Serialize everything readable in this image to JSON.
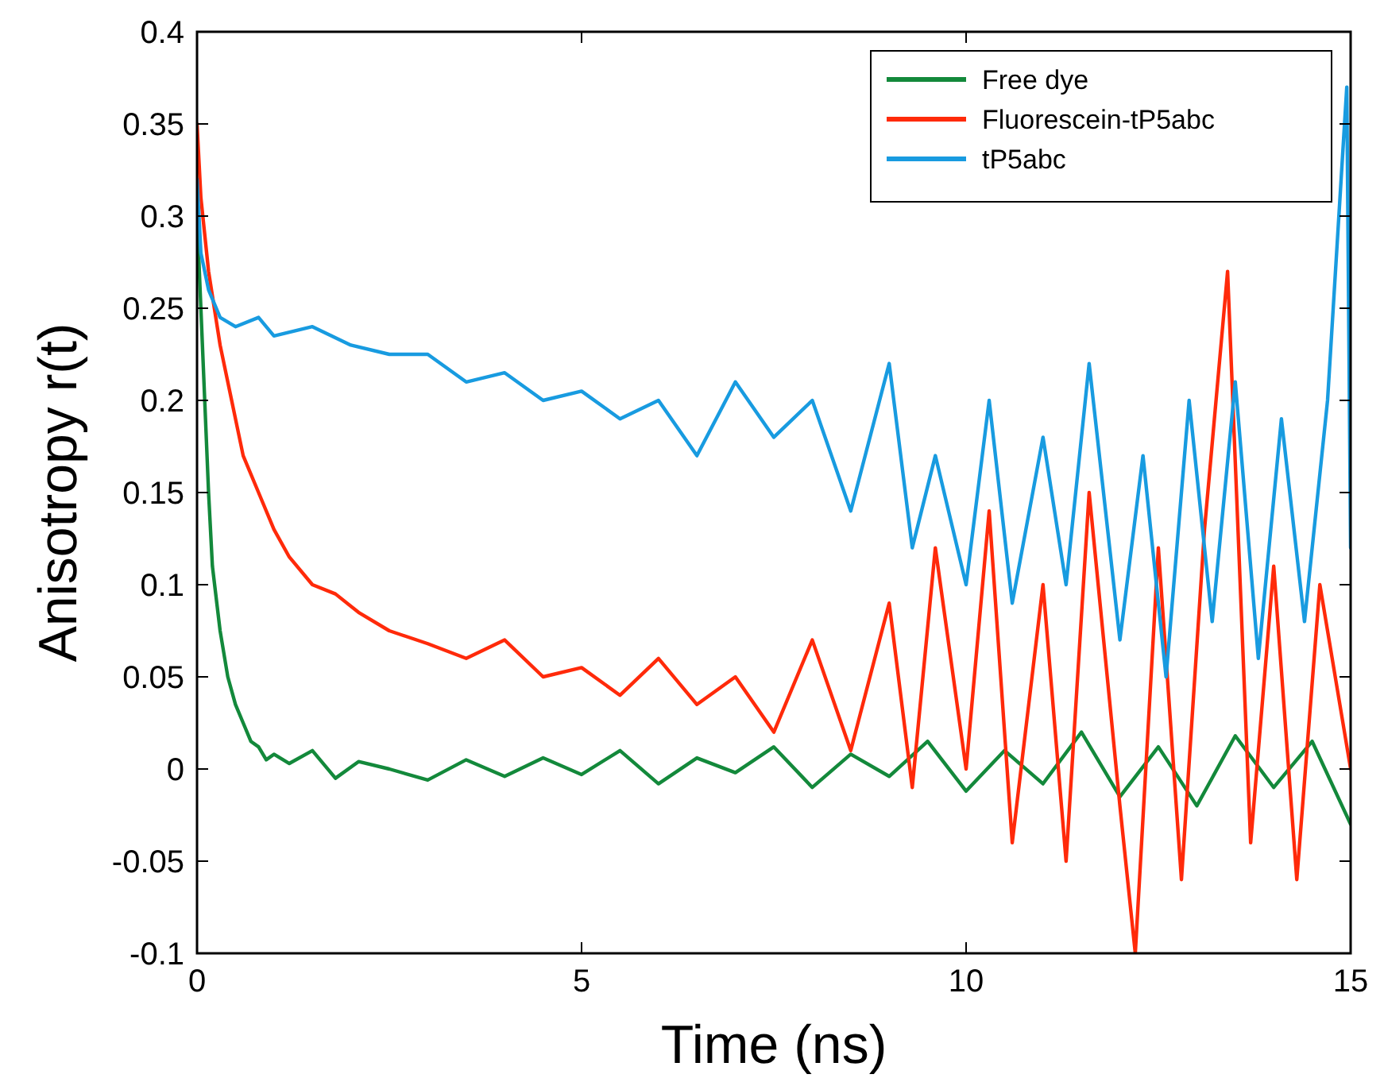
{
  "chart_data": {
    "type": "line",
    "xlabel": "Time (ns)",
    "ylabel": "Anisotropy r(t)",
    "xlim": [
      0,
      15
    ],
    "ylim": [
      -0.1,
      0.4
    ],
    "xticks": [
      0,
      5,
      10,
      15
    ],
    "yticks": [
      -0.1,
      -0.05,
      0,
      0.05,
      0.1,
      0.15,
      0.2,
      0.25,
      0.3,
      0.35,
      0.4
    ],
    "grid": false,
    "legend": "top right",
    "marker": "none",
    "line_style": "solid",
    "series": [
      {
        "name": "Free dye",
        "color": "#13893b",
        "x": [
          0,
          0.05,
          0.1,
          0.15,
          0.2,
          0.3,
          0.4,
          0.5,
          0.6,
          0.7,
          0.8,
          0.9,
          1.0,
          1.2,
          1.5,
          1.8,
          2.1,
          2.5,
          3,
          3.5,
          4,
          4.5,
          5,
          5.5,
          6,
          6.5,
          7,
          7.5,
          8,
          8.5,
          9,
          9.5,
          10,
          10.5,
          11,
          11.5,
          12,
          12.5,
          13,
          13.5,
          14,
          14.5,
          15
        ],
        "values": [
          0.3,
          0.25,
          0.2,
          0.15,
          0.11,
          0.075,
          0.05,
          0.035,
          0.025,
          0.015,
          0.012,
          0.005,
          0.008,
          0.003,
          0.01,
          -0.005,
          0.004,
          0,
          -0.006,
          0.005,
          -0.004,
          0.006,
          -0.003,
          0.01,
          -0.008,
          0.006,
          -0.002,
          0.012,
          -0.01,
          0.008,
          -0.004,
          0.015,
          -0.012,
          0.01,
          -0.008,
          0.02,
          -0.015,
          0.012,
          -0.02,
          0.018,
          -0.01,
          0.015,
          -0.03
        ]
      },
      {
        "name": "Fluorescein-tP5abc",
        "color": "#ff2a0a",
        "x": [
          0,
          0.05,
          0.15,
          0.3,
          0.45,
          0.6,
          0.8,
          1.0,
          1.2,
          1.5,
          1.8,
          2.1,
          2.5,
          3,
          3.5,
          4,
          4.5,
          5,
          5.5,
          6,
          6.5,
          7,
          7.5,
          8,
          8.5,
          9,
          9.3,
          9.6,
          10,
          10.3,
          10.6,
          11,
          11.3,
          11.6,
          12,
          12.2,
          12.5,
          12.8,
          13.1,
          13.4,
          13.7,
          14,
          14.3,
          14.6,
          15
        ],
        "values": [
          0.35,
          0.31,
          0.27,
          0.23,
          0.2,
          0.17,
          0.15,
          0.13,
          0.115,
          0.1,
          0.095,
          0.085,
          0.075,
          0.068,
          0.06,
          0.07,
          0.05,
          0.055,
          0.04,
          0.06,
          0.035,
          0.05,
          0.02,
          0.07,
          0.01,
          0.09,
          -0.01,
          0.12,
          0.0,
          0.14,
          -0.04,
          0.1,
          -0.05,
          0.15,
          -0.02,
          -0.1,
          0.12,
          -0.06,
          0.13,
          0.27,
          -0.04,
          0.11,
          -0.06,
          0.1,
          0.0
        ]
      },
      {
        "name": "tP5abc",
        "color": "#189be0",
        "x": [
          0,
          0.05,
          0.15,
          0.3,
          0.5,
          0.8,
          1.0,
          1.5,
          2,
          2.5,
          3,
          3.5,
          4,
          4.5,
          5,
          5.5,
          6,
          6.5,
          7,
          7.5,
          8,
          8.5,
          9,
          9.3,
          9.6,
          10,
          10.3,
          10.6,
          11,
          11.3,
          11.6,
          12,
          12.3,
          12.6,
          12.9,
          13.2,
          13.5,
          13.8,
          14.1,
          14.4,
          14.7,
          14.95,
          15
        ],
        "values": [
          0.32,
          0.28,
          0.26,
          0.245,
          0.24,
          0.245,
          0.235,
          0.24,
          0.23,
          0.225,
          0.225,
          0.21,
          0.215,
          0.2,
          0.205,
          0.19,
          0.2,
          0.17,
          0.21,
          0.18,
          0.2,
          0.14,
          0.22,
          0.12,
          0.17,
          0.1,
          0.2,
          0.09,
          0.18,
          0.1,
          0.22,
          0.07,
          0.17,
          0.05,
          0.2,
          0.08,
          0.21,
          0.06,
          0.19,
          0.08,
          0.2,
          0.37,
          0.12
        ]
      }
    ]
  }
}
